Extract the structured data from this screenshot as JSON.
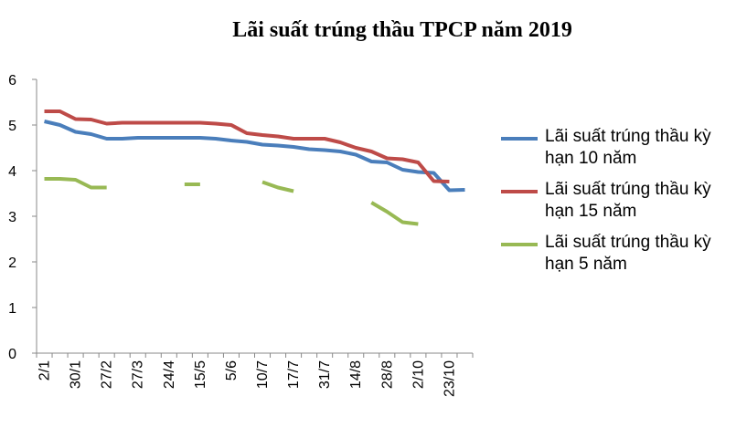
{
  "chart_data": {
    "type": "line",
    "title": "Lãi suất trúng thầu TPCP năm 2019",
    "categories": [
      "2/1",
      null,
      "30/1",
      null,
      "27/2",
      null,
      "27/3",
      null,
      "24/4",
      null,
      "15/5",
      null,
      "5/6",
      null,
      "10/7",
      null,
      "17/7",
      null,
      "31/7",
      null,
      "14/8",
      null,
      "28/8",
      null,
      "2/10",
      null,
      "23/10",
      null
    ],
    "series": [
      {
        "name": "Lãi suất trúng thầu kỳ hạn 10 năm",
        "color": "#4a7ebb",
        "values": [
          5.08,
          5.0,
          4.85,
          4.8,
          4.7,
          4.7,
          4.72,
          4.72,
          4.72,
          4.72,
          4.72,
          4.7,
          4.66,
          4.63,
          4.57,
          4.55,
          4.52,
          4.47,
          4.45,
          4.42,
          4.35,
          4.2,
          4.18,
          4.02,
          3.97,
          3.95,
          3.57,
          3.58
        ]
      },
      {
        "name": "Lãi suất trúng thầu kỳ hạn 15 năm",
        "color": "#be4b48",
        "values": [
          5.3,
          5.3,
          5.13,
          5.12,
          5.03,
          5.05,
          5.05,
          5.05,
          5.05,
          5.05,
          5.05,
          5.03,
          5.0,
          4.82,
          4.78,
          4.75,
          4.7,
          4.7,
          4.7,
          4.62,
          4.5,
          4.42,
          4.27,
          4.25,
          4.18,
          3.77,
          3.76,
          null
        ]
      },
      {
        "name": "Lãi suất trúng thầu kỳ hạn 5 năm",
        "color": "#98b954",
        "values": [
          3.82,
          3.82,
          3.8,
          3.63,
          3.63,
          null,
          null,
          null,
          null,
          3.7,
          3.7,
          null,
          null,
          null,
          3.75,
          3.63,
          3.55,
          null,
          null,
          null,
          null,
          3.3,
          3.1,
          2.87,
          2.83,
          null,
          null,
          null
        ]
      }
    ],
    "ylim": [
      0,
      6
    ],
    "yticks": [
      0,
      1,
      2,
      3,
      4,
      5,
      6
    ],
    "grid": false
  }
}
